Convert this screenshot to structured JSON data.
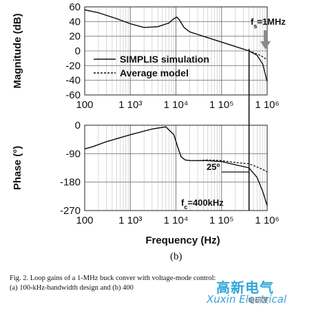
{
  "chart_data": [
    {
      "type": "line",
      "ylabel": "Magnitude (dB)",
      "xscale": "log",
      "xlim": [
        100,
        1000000
      ],
      "ylim": [
        -60,
        60
      ],
      "yticks": [
        60,
        40,
        20,
        0,
        -20,
        -40,
        -60
      ],
      "xtick_labels": [
        "100",
        "1 10³",
        "1 10⁴",
        "1 10⁵",
        "1 10⁶"
      ],
      "grid": true,
      "legend": "center",
      "series": [
        {
          "name": "SIMPLIS simulation",
          "style": "solid",
          "x": [
            100,
            200,
            500,
            1000,
            2000,
            4000,
            7000,
            9000,
            10500,
            12000,
            15000,
            20000,
            50000,
            100000,
            200000,
            400000,
            600000,
            800000,
            1000000
          ],
          "y": [
            56,
            52,
            44,
            37,
            32,
            33,
            38,
            44,
            46,
            42,
            32,
            26,
            18,
            12,
            6,
            0,
            -6,
            -18,
            -42
          ]
        },
        {
          "name": "Average model",
          "style": "dashed",
          "x": [
            100,
            200,
            500,
            1000,
            2000,
            4000,
            7000,
            9000,
            10500,
            12000,
            15000,
            20000,
            50000,
            100000,
            200000,
            400000,
            600000,
            800000,
            1000000
          ],
          "y": [
            56,
            52,
            44,
            37,
            32,
            33,
            38,
            44,
            46,
            42,
            32,
            26,
            18,
            12,
            6,
            0,
            -4,
            -8,
            -12
          ]
        }
      ]
    },
    {
      "type": "line",
      "ylabel": "Phase (°)",
      "xlabel": "Frequency (Hz)",
      "xscale": "log",
      "xlim": [
        100,
        1000000
      ],
      "ylim": [
        -270,
        0
      ],
      "yticks": [
        0,
        -90,
        -180,
        -270
      ],
      "xtick_labels": [
        "100",
        "1 10³",
        "1 10⁴",
        "1 10⁵",
        "1 10⁶"
      ],
      "grid": true,
      "series": [
        {
          "name": "SIMPLIS simulation",
          "style": "solid",
          "x": [
            100,
            150,
            300,
            1000,
            3000,
            6000,
            9000,
            11000,
            13000,
            16000,
            20000,
            30000,
            50000,
            100000,
            200000,
            400000,
            600000,
            800000,
            1000000
          ],
          "y": [
            -75,
            -68,
            -52,
            -30,
            -12,
            -5,
            -30,
            -70,
            -100,
            -110,
            -112,
            -112,
            -112,
            -115,
            -125,
            -135,
            -165,
            -210,
            -255
          ]
        },
        {
          "name": "Average model",
          "style": "dashed",
          "x": [
            100,
            150,
            300,
            1000,
            3000,
            6000,
            9000,
            11000,
            13000,
            16000,
            20000,
            30000,
            50000,
            100000,
            200000,
            400000,
            600000,
            800000,
            1000000
          ],
          "y": [
            -75,
            -68,
            -52,
            -30,
            -12,
            -5,
            -30,
            -70,
            -100,
            -110,
            -112,
            -112,
            -110,
            -112,
            -118,
            -122,
            -132,
            -140,
            -148
          ]
        }
      ]
    }
  ],
  "annotations": {
    "fs_prefix": "f",
    "fs_sub": "s",
    "fs_value": "=1MHz",
    "phase_margin": "25º",
    "fc_prefix": "f",
    "fc_sub": "c",
    "fc_value": "=400kHz"
  },
  "figure_sublabel": "(b)",
  "caption": {
    "line1": "Fig. 2.  Loop gains of a 1-MHz buck conver  with voltage-mode control:",
    "line2": "(a) 100-kHz-bandwidth design and (b) 400"
  },
  "watermark": {
    "main": "高新电气",
    "sub": "Xuxin Electrical",
    "tag": "电研发"
  },
  "colors": {
    "line": "#111111",
    "grid_minor": "#c8c8c8",
    "grid_major": "#777777",
    "watermark": "#2fa7d8",
    "arrow": "#8a8a8a"
  }
}
